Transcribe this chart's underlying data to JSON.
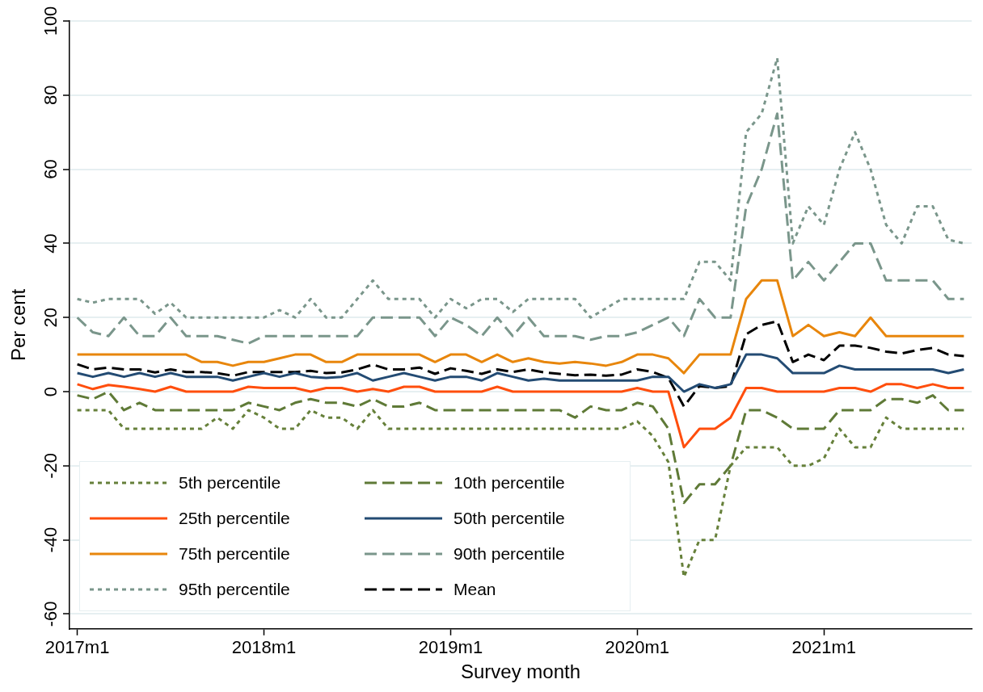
{
  "chart_data": {
    "type": "line",
    "xlabel": "Survey month",
    "ylabel": "Per cent",
    "categories": [
      "2017m1",
      null,
      null,
      null,
      null,
      null,
      null,
      null,
      null,
      null,
      null,
      null,
      "2018m1",
      null,
      null,
      null,
      null,
      null,
      null,
      null,
      null,
      null,
      null,
      null,
      "2019m1",
      null,
      null,
      null,
      null,
      null,
      null,
      null,
      null,
      null,
      null,
      null,
      "2020m1",
      null,
      null,
      null,
      null,
      null,
      null,
      null,
      null,
      null,
      null,
      null,
      "2021m1",
      null,
      null,
      null,
      null,
      null,
      null,
      null,
      null,
      null
    ],
    "ylim": [
      -64,
      100
    ],
    "yticks": [
      -60,
      -40,
      -20,
      0,
      20,
      40,
      60,
      80,
      100
    ],
    "grid": "y",
    "legend": "bottom left",
    "series": [
      {
        "name": "5th percentile",
        "color": "#66803a",
        "line_style": "dotted",
        "values": [
          -5,
          -5,
          -5,
          -10,
          -10,
          -10,
          -10,
          -10,
          -10,
          -7,
          -10,
          -5,
          -7,
          -10,
          -10,
          -5,
          -7,
          -7,
          -10,
          -5,
          -10,
          -10,
          -10,
          -10,
          -10,
          -10,
          -10,
          -10,
          -10,
          -10,
          -10,
          -10,
          -10,
          -10,
          -10,
          -10,
          -8,
          -12,
          -19,
          -50,
          -40,
          -40,
          -20,
          -15,
          -15,
          -15,
          -20,
          -20,
          -18,
          -10,
          -15,
          -15,
          -7,
          -10,
          -10,
          -10,
          -10,
          -10
        ]
      },
      {
        "name": "10th percentile",
        "color": "#5f7a37",
        "line_style": "dashed",
        "values": [
          -1,
          -2,
          0,
          -5,
          -3,
          -5,
          -5,
          -5,
          -5,
          -5,
          -5,
          -3,
          -4,
          -5,
          -3,
          -2,
          -3,
          -3,
          -4,
          -2,
          -4,
          -4,
          -3,
          -5,
          -5,
          -5,
          -5,
          -5,
          -5,
          -5,
          -5,
          -5,
          -7,
          -4,
          -5,
          -5,
          -3,
          -4,
          -10,
          -30,
          -25,
          -25,
          -20,
          -5,
          -5,
          -7,
          -10,
          -10,
          -10,
          -5,
          -5,
          -5,
          -2,
          -2,
          -3,
          -1,
          -5,
          -5
        ]
      },
      {
        "name": "25th percentile",
        "color": "#ff4e0d",
        "line_style": "solid",
        "values": [
          2,
          0.7,
          1.8,
          1.3,
          0.7,
          0,
          1.3,
          0,
          0,
          0,
          0,
          1.3,
          1,
          1,
          1,
          0,
          1,
          1,
          0,
          0.7,
          0,
          1.3,
          1.3,
          0,
          0,
          0,
          0,
          1.3,
          0,
          0,
          0,
          0,
          0,
          0,
          0,
          0,
          1,
          0,
          0,
          -15,
          -10,
          -10,
          -7,
          1,
          1,
          0,
          0,
          0,
          0,
          1,
          1,
          0,
          2,
          2,
          1,
          2,
          1,
          1
        ]
      },
      {
        "name": "50th percentile",
        "color": "#234b73",
        "line_style": "solid",
        "values": [
          5,
          4,
          5,
          4,
          5,
          4,
          5,
          4,
          4,
          4,
          3,
          4,
          5,
          4,
          5,
          4,
          3.7,
          4,
          5,
          3,
          4,
          5,
          4,
          3,
          4,
          4,
          3,
          5,
          4,
          3,
          3.5,
          3,
          3,
          3,
          3,
          3,
          3,
          4,
          4,
          0,
          2,
          1,
          2,
          10,
          10,
          9,
          5,
          5,
          5,
          7,
          6,
          6,
          6,
          6,
          6,
          6,
          5,
          6
        ]
      },
      {
        "name": "75th percentile",
        "color": "#e8860c",
        "line_style": "solid",
        "values": [
          10,
          10,
          10,
          10,
          10,
          10,
          10,
          10,
          8,
          8,
          7,
          8,
          8,
          9,
          10,
          10,
          8,
          8,
          10,
          10,
          10,
          10,
          10,
          8,
          10,
          10,
          8,
          10,
          8,
          9,
          8,
          7.6,
          8,
          7.6,
          7,
          8,
          10,
          10,
          9,
          5,
          10,
          10,
          10,
          25,
          30,
          30,
          15,
          18,
          15,
          16,
          15,
          20,
          15,
          15,
          15,
          15,
          15,
          15
        ]
      },
      {
        "name": "90th percentile",
        "color": "#7a968b",
        "line_style": "dashed",
        "values": [
          20,
          16,
          15,
          20,
          15,
          15,
          20,
          15,
          15,
          15,
          14,
          13,
          15,
          15,
          15,
          15,
          15,
          15,
          15,
          20,
          20,
          20,
          20,
          15,
          20,
          18,
          15,
          20,
          15,
          20,
          15,
          15,
          15,
          14,
          15,
          15,
          16,
          18,
          20,
          15,
          25,
          20,
          20,
          50,
          60,
          75,
          30,
          35,
          30,
          35,
          40,
          40,
          30,
          30,
          30,
          30,
          25,
          25
        ]
      },
      {
        "name": "95th percentile",
        "color": "#7a968b",
        "line_style": "dotted",
        "values": [
          25,
          24,
          25,
          25,
          25,
          21,
          24,
          20,
          20,
          20,
          20,
          20,
          20,
          22,
          20,
          25,
          20,
          20,
          25,
          30,
          25,
          25,
          25,
          20,
          25,
          22.5,
          25,
          25,
          21.5,
          25,
          25,
          25,
          25,
          20,
          22.5,
          25,
          25,
          25,
          25,
          25,
          35,
          35,
          30,
          70,
          75,
          90,
          40,
          50,
          45,
          60,
          70,
          60,
          45,
          40,
          50,
          50,
          41,
          40
        ]
      },
      {
        "name": "Mean",
        "color": "#000000",
        "line_style": "dashed",
        "values": [
          7.4,
          6,
          6.5,
          6,
          6,
          5.2,
          6,
          5.3,
          5.3,
          5,
          4.3,
          5.3,
          5.3,
          5.3,
          5.3,
          5.6,
          5,
          5.2,
          6,
          7.3,
          6,
          6,
          6.5,
          4.8,
          6.3,
          5.6,
          4.8,
          6,
          5.3,
          6,
          5.2,
          4.8,
          4.4,
          4.6,
          4.3,
          4.6,
          6,
          5.3,
          3.7,
          -4,
          1.5,
          1,
          1.5,
          15.5,
          18,
          19,
          8,
          10,
          8.5,
          12.4,
          12.4,
          11.8,
          10.8,
          10.3,
          11.2,
          11.8,
          10,
          9.6
        ]
      }
    ]
  }
}
